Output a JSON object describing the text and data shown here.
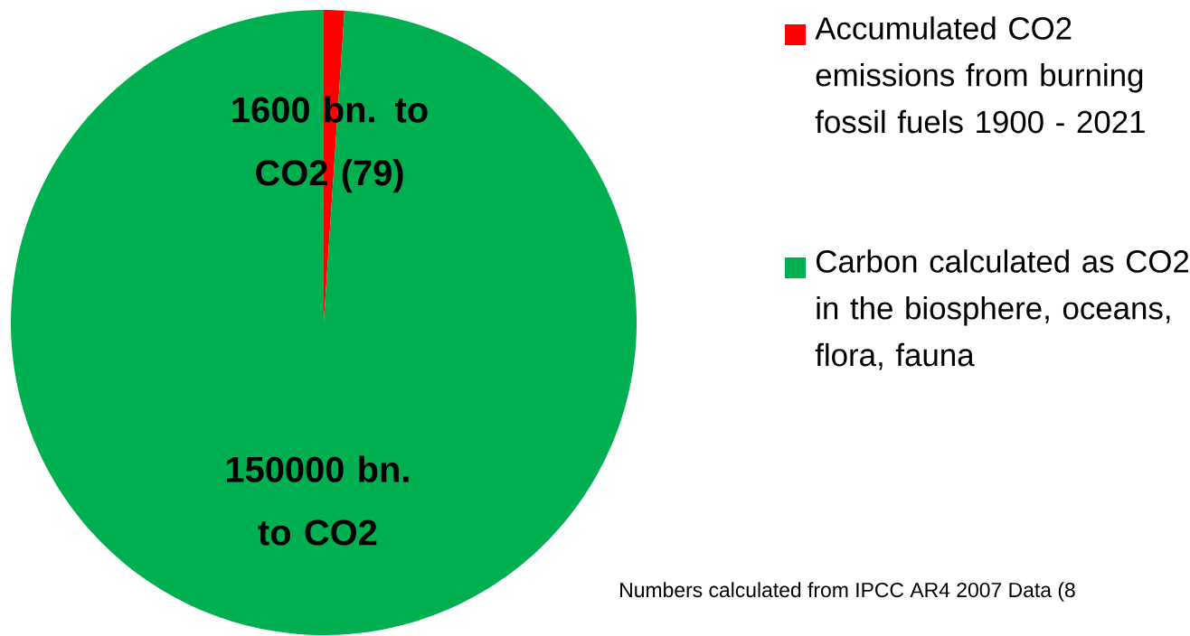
{
  "chart_data": {
    "type": "pie",
    "categories": [
      "Accumulated CO2 emissions from burning fossil fuels 1900 - 2021",
      "Carbon calculated as CO2 in the biosphere, oceans, flora, fauna"
    ],
    "values": [
      1.06,
      98.94
    ],
    "colors": [
      "#ff0000",
      "#00b050"
    ],
    "legend": "right",
    "annotations": [
      "1600 bn. to CO2 (79)",
      "150000 bn. to CO2",
      "Numbers calculated from IPCC AR4 2007 Data (8"
    ]
  }
}
